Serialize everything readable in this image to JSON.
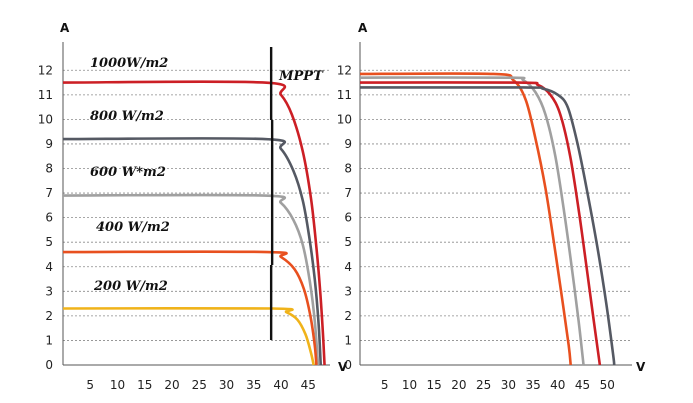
{
  "chart_data": [
    {
      "type": "line",
      "ylabel": "A",
      "xlabel": "V",
      "xlim": [
        0,
        49
      ],
      "ylim": [
        0,
        12.5
      ],
      "xticks": [
        5,
        10,
        15,
        20,
        25,
        30,
        35,
        40,
        45
      ],
      "yticks": [
        0,
        1,
        2,
        3,
        4,
        5,
        6,
        7,
        8,
        9,
        10,
        11,
        12
      ],
      "grid": "horizontal dashed",
      "series": [
        {
          "name": "1000W/m2",
          "color": "#cc1f25",
          "points": [
            [
              0,
              11.5
            ],
            [
              37,
              11.5
            ],
            [
              40,
              11.0
            ],
            [
              42,
              10.2
            ],
            [
              44,
              8.7
            ],
            [
              45.5,
              6.8
            ],
            [
              46.5,
              4.8
            ],
            [
              47.2,
              3.0
            ],
            [
              47.7,
              1.3
            ],
            [
              48,
              0
            ]
          ]
        },
        {
          "name": "800 W/m2",
          "color": "#555963",
          "points": [
            [
              0,
              9.2
            ],
            [
              37,
              9.2
            ],
            [
              40,
              8.8
            ],
            [
              42.3,
              7.9
            ],
            [
              44,
              6.7
            ],
            [
              45.2,
              5.2
            ],
            [
              46.2,
              3.5
            ],
            [
              46.9,
              1.7
            ],
            [
              47.3,
              0
            ]
          ]
        },
        {
          "name": "600 W*m2",
          "color": "#a0a0a0",
          "points": [
            [
              0,
              6.9
            ],
            [
              37,
              6.9
            ],
            [
              40,
              6.6
            ],
            [
              42.3,
              5.9
            ],
            [
              44,
              4.9
            ],
            [
              45.3,
              3.4
            ],
            [
              46.2,
              1.8
            ],
            [
              46.8,
              0
            ]
          ]
        },
        {
          "name": "400 W/m2",
          "color": "#e8501f",
          "points": [
            [
              0,
              4.6
            ],
            [
              37.5,
              4.6
            ],
            [
              40,
              4.4
            ],
            [
              42.5,
              3.9
            ],
            [
              44.2,
              3.1
            ],
            [
              45.4,
              2.0
            ],
            [
              46.2,
              0.8
            ],
            [
              46.5,
              0
            ]
          ]
        },
        {
          "name": "200 W/m2",
          "color": "#f0b31a",
          "points": [
            [
              0,
              2.3
            ],
            [
              38.5,
              2.3
            ],
            [
              41,
              2.15
            ],
            [
              43,
              1.85
            ],
            [
              44.5,
              1.25
            ],
            [
              45.5,
              0.5
            ],
            [
              46,
              0
            ]
          ]
        }
      ],
      "annotations": [
        {
          "text": "MPPT",
          "x": 38.2
        }
      ]
    },
    {
      "type": "line",
      "ylabel": "A",
      "xlabel": "V",
      "xlim": [
        0,
        55
      ],
      "ylim": [
        0,
        12.5
      ],
      "xticks": [
        5,
        10,
        15,
        20,
        25,
        30,
        35,
        40,
        45,
        50
      ],
      "yticks": [
        0,
        1,
        2,
        3,
        4,
        5,
        6,
        7,
        8,
        9,
        10,
        11,
        12
      ],
      "grid": "horizontal dashed",
      "series": [
        {
          "color": "#e8501f",
          "points": [
            [
              0,
              11.85
            ],
            [
              27,
              11.85
            ],
            [
              31,
              11.6
            ],
            [
              33.5,
              10.8
            ],
            [
              35.5,
              9.2
            ],
            [
              37.5,
              7.2
            ],
            [
              39.2,
              5.0
            ],
            [
              40.8,
              2.8
            ],
            [
              42.2,
              0.8
            ],
            [
              42.6,
              0
            ]
          ]
        },
        {
          "color": "#a0a0a0",
          "points": [
            [
              0,
              11.7
            ],
            [
              30,
              11.7
            ],
            [
              33,
              11.6
            ],
            [
              35.5,
              11.1
            ],
            [
              37.5,
              10.2
            ],
            [
              39.5,
              8.5
            ],
            [
              41.3,
              6.2
            ],
            [
              42.8,
              4.0
            ],
            [
              44.2,
              1.8
            ],
            [
              45.2,
              0
            ]
          ]
        },
        {
          "color": "#cc1f25",
          "points": [
            [
              0,
              11.5
            ],
            [
              32,
              11.5
            ],
            [
              36,
              11.4
            ],
            [
              38.5,
              11.0
            ],
            [
              40.5,
              10.2
            ],
            [
              42.5,
              8.5
            ],
            [
              44.3,
              6.2
            ],
            [
              45.8,
              4.0
            ],
            [
              47.2,
              1.9
            ],
            [
              48.5,
              0
            ]
          ]
        },
        {
          "color": "#555963",
          "points": [
            [
              0,
              11.3
            ],
            [
              33,
              11.3
            ],
            [
              37,
              11.25
            ],
            [
              40,
              11.0
            ],
            [
              42,
              10.5
            ],
            [
              44,
              9.0
            ],
            [
              46,
              7.0
            ],
            [
              48,
              4.8
            ],
            [
              49.8,
              2.5
            ],
            [
              51.2,
              0.4
            ],
            [
              51.4,
              0
            ]
          ]
        }
      ]
    }
  ]
}
